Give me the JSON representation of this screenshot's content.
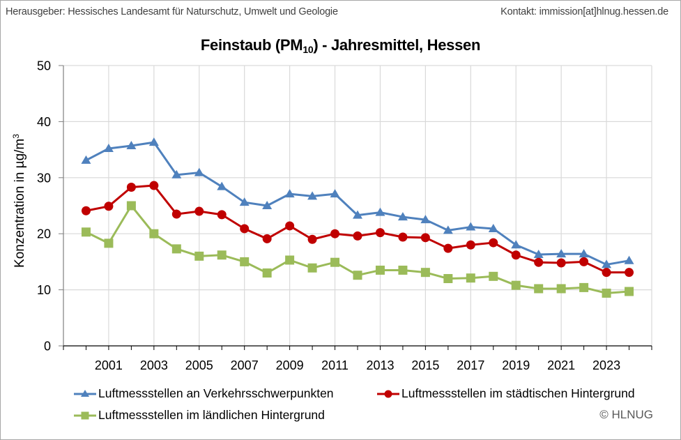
{
  "header": {
    "publisher": "Herausgeber:  Hessisches Landesamt für Naturschutz, Umwelt und Geologie",
    "contact": "Kontakt: immission[at]hlnug.hessen.de"
  },
  "footer": {
    "copyright": "© HLNUG"
  },
  "chart_data": {
    "type": "line",
    "title": "Feinstaub (PM10) - Jahresmittel, Hessen",
    "title_parts": {
      "before": "Feinstaub (PM",
      "sub": "10",
      "after": ") - Jahresmittel, Hessen"
    },
    "xlabel": "",
    "ylabel": "Konzentration in µg/m³",
    "ylabel_parts": {
      "base": "Konzentration in µg/m",
      "sup": "3"
    },
    "ylim": [
      0,
      50
    ],
    "yticks": [
      0,
      10,
      20,
      30,
      40,
      50
    ],
    "xlim": [
      1999,
      2025
    ],
    "xtick_labels": [
      "2001",
      "2003",
      "2005",
      "2007",
      "2009",
      "2011",
      "2013",
      "2015",
      "2017",
      "2019",
      "2021",
      "2023"
    ],
    "grid": true,
    "legend_position": "bottom",
    "x": [
      2000,
      2001,
      2002,
      2003,
      2004,
      2005,
      2006,
      2007,
      2008,
      2009,
      2010,
      2011,
      2012,
      2013,
      2014,
      2015,
      2016,
      2017,
      2018,
      2019,
      2020,
      2021,
      2022,
      2023,
      2024
    ],
    "series": [
      {
        "name": "Luftmessstellen an Verkehrsschwerpunkten",
        "color": "#4F81BD",
        "marker": "triangle",
        "values": [
          33.1,
          35.2,
          35.7,
          36.3,
          30.5,
          30.9,
          28.4,
          25.6,
          25.0,
          27.1,
          26.7,
          27.1,
          23.3,
          23.8,
          23.0,
          22.5,
          20.6,
          21.2,
          20.9,
          18.0,
          16.3,
          16.4,
          16.4,
          14.5,
          15.2
        ]
      },
      {
        "name": "Luftmessstellen im städtischen Hintergrund",
        "color": "#C00000",
        "marker": "circle",
        "values": [
          24.1,
          24.9,
          28.3,
          28.6,
          23.5,
          24.0,
          23.4,
          20.9,
          19.1,
          21.4,
          19.0,
          20.0,
          19.6,
          20.2,
          19.4,
          19.3,
          17.4,
          18.0,
          18.4,
          16.2,
          14.9,
          14.8,
          15.0,
          13.1,
          13.1
        ]
      },
      {
        "name": "Luftmessstellen im ländlichen Hintergrund",
        "color": "#9BBB59",
        "marker": "square",
        "values": [
          20.3,
          18.3,
          25.0,
          20.0,
          17.3,
          16.0,
          16.2,
          15.0,
          13.0,
          15.3,
          13.9,
          14.9,
          12.6,
          13.5,
          13.5,
          13.1,
          12.0,
          12.1,
          12.4,
          10.8,
          10.2,
          10.2,
          10.4,
          9.4,
          9.7
        ]
      }
    ]
  }
}
